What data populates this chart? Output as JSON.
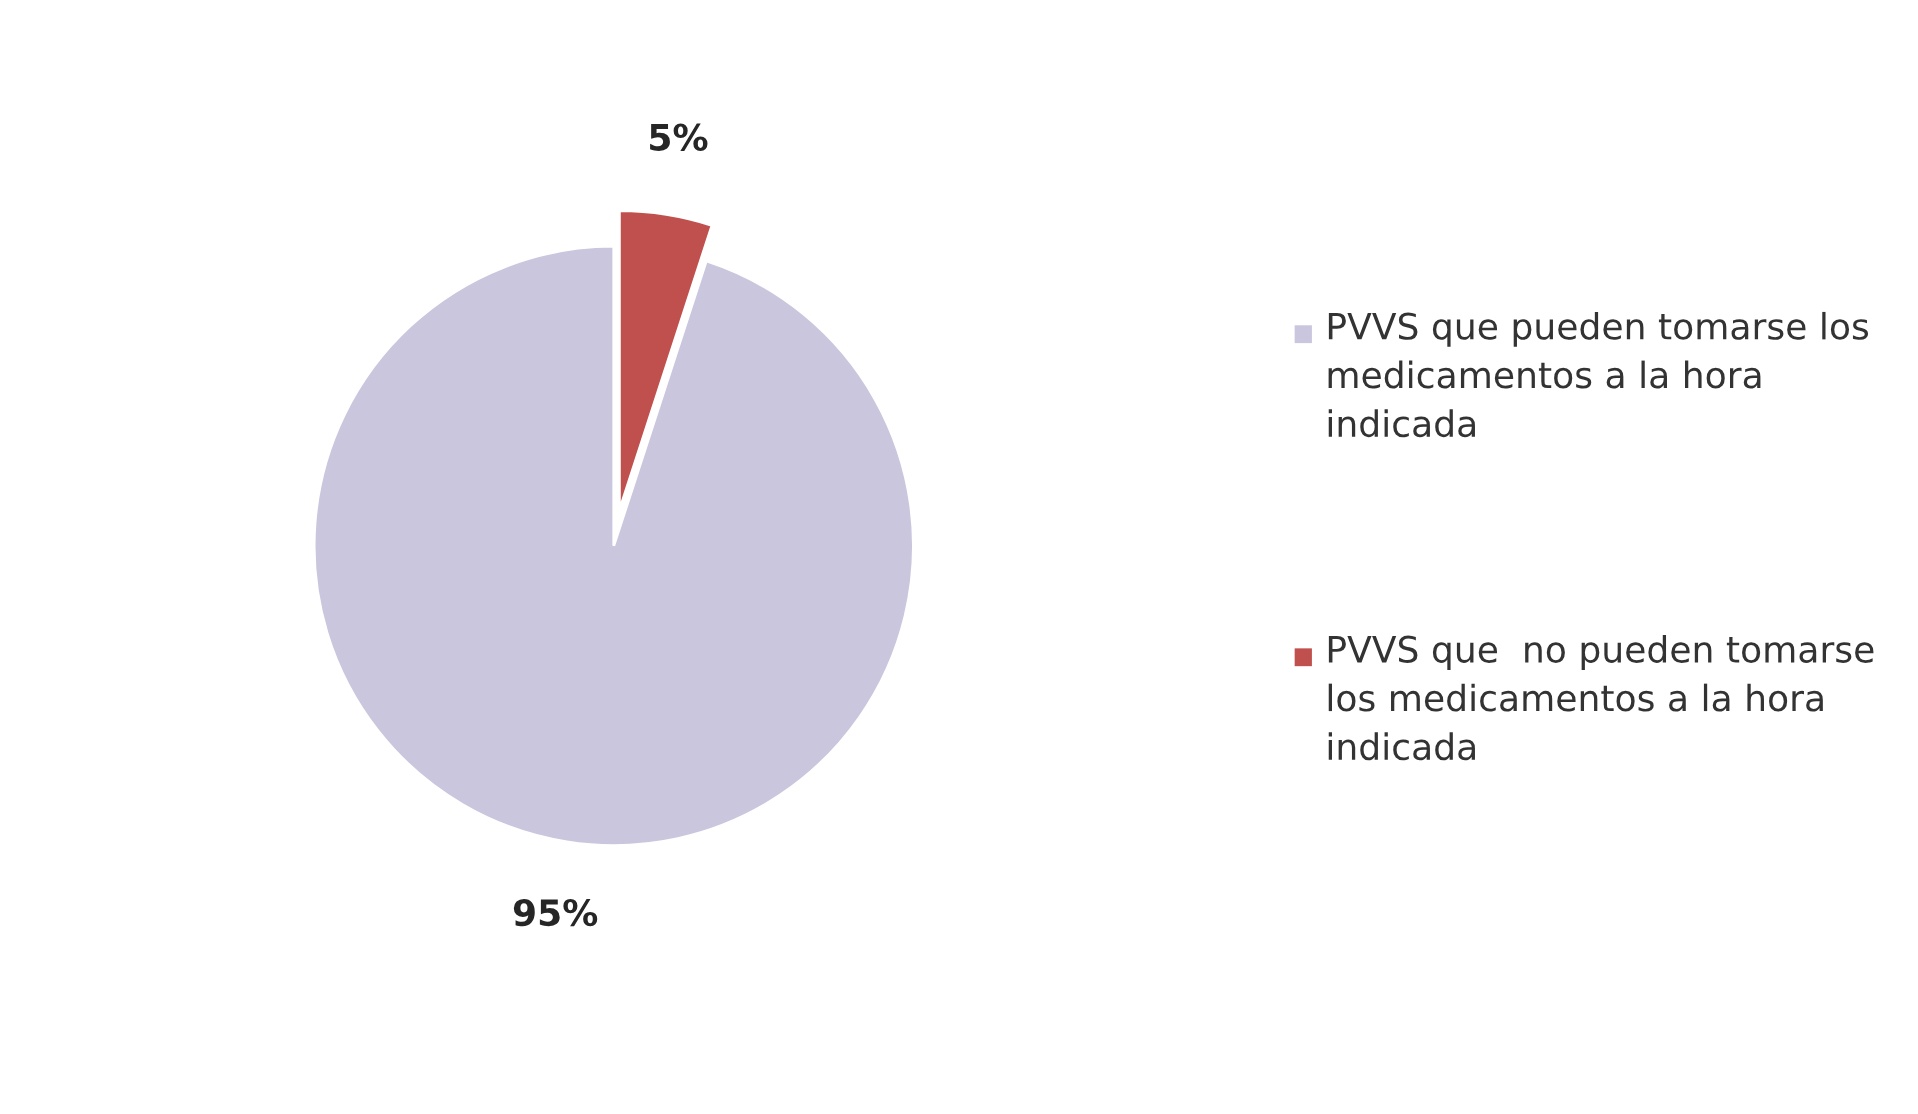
{
  "chart_data": {
    "type": "pie",
    "categories": [
      "PVVS que pueden tomarse los medicamentos a la hora indicada",
      "PVVS que  no pueden tomarse los medicamentos a la hora indicada"
    ],
    "values": [
      95,
      5
    ],
    "colors": [
      "#c9c6dd",
      "#c0504d"
    ],
    "value_labels": [
      "95%",
      "5%"
    ],
    "legend": "right"
  }
}
